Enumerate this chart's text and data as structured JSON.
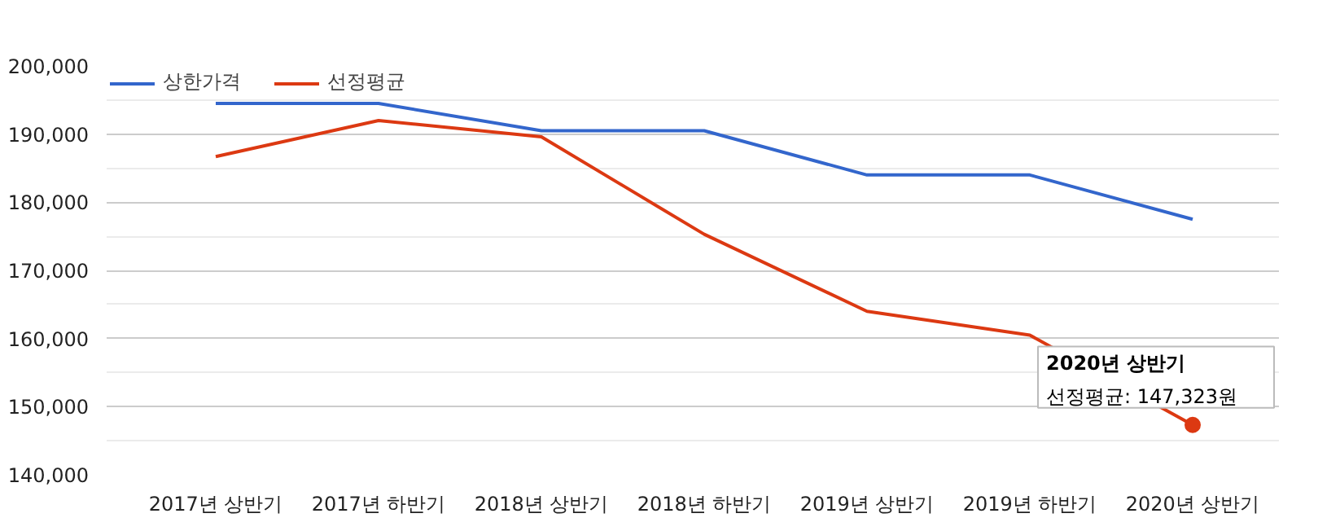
{
  "chart_data": {
    "type": "line",
    "categories": [
      "2017년 상반기",
      "2017년 하반기",
      "2018년 상반기",
      "2018년 하반기",
      "2019년 상반기",
      "2019년 하반기",
      "2020년 상반기"
    ],
    "series": [
      {
        "name": "상한가격",
        "color": "#3366cc",
        "values": [
          194500,
          194500,
          190500,
          190500,
          184000,
          184000,
          177500
        ]
      },
      {
        "name": "선정평균",
        "color": "#dc3912",
        "values": [
          186700,
          192000,
          189600,
          175300,
          164000,
          160500,
          147323
        ]
      }
    ],
    "ylim": [
      140000,
      200000
    ],
    "yticks": [
      {
        "value": 140000,
        "label": "140,000"
      },
      {
        "value": 150000,
        "label": "150,000"
      },
      {
        "value": 160000,
        "label": "160,000"
      },
      {
        "value": 170000,
        "label": "170,000"
      },
      {
        "value": 180000,
        "label": "180,000"
      },
      {
        "value": 190000,
        "label": "190,000"
      },
      {
        "value": 200000,
        "label": "200,000"
      }
    ],
    "grid": "y",
    "legend": "top left",
    "line_style": "solid",
    "marker": "none",
    "annotations": [
      {
        "text": "2020년 상반기\n선정평균: 147,323원",
        "x": "2020년 상반기",
        "y": 147323
      }
    ]
  }
}
